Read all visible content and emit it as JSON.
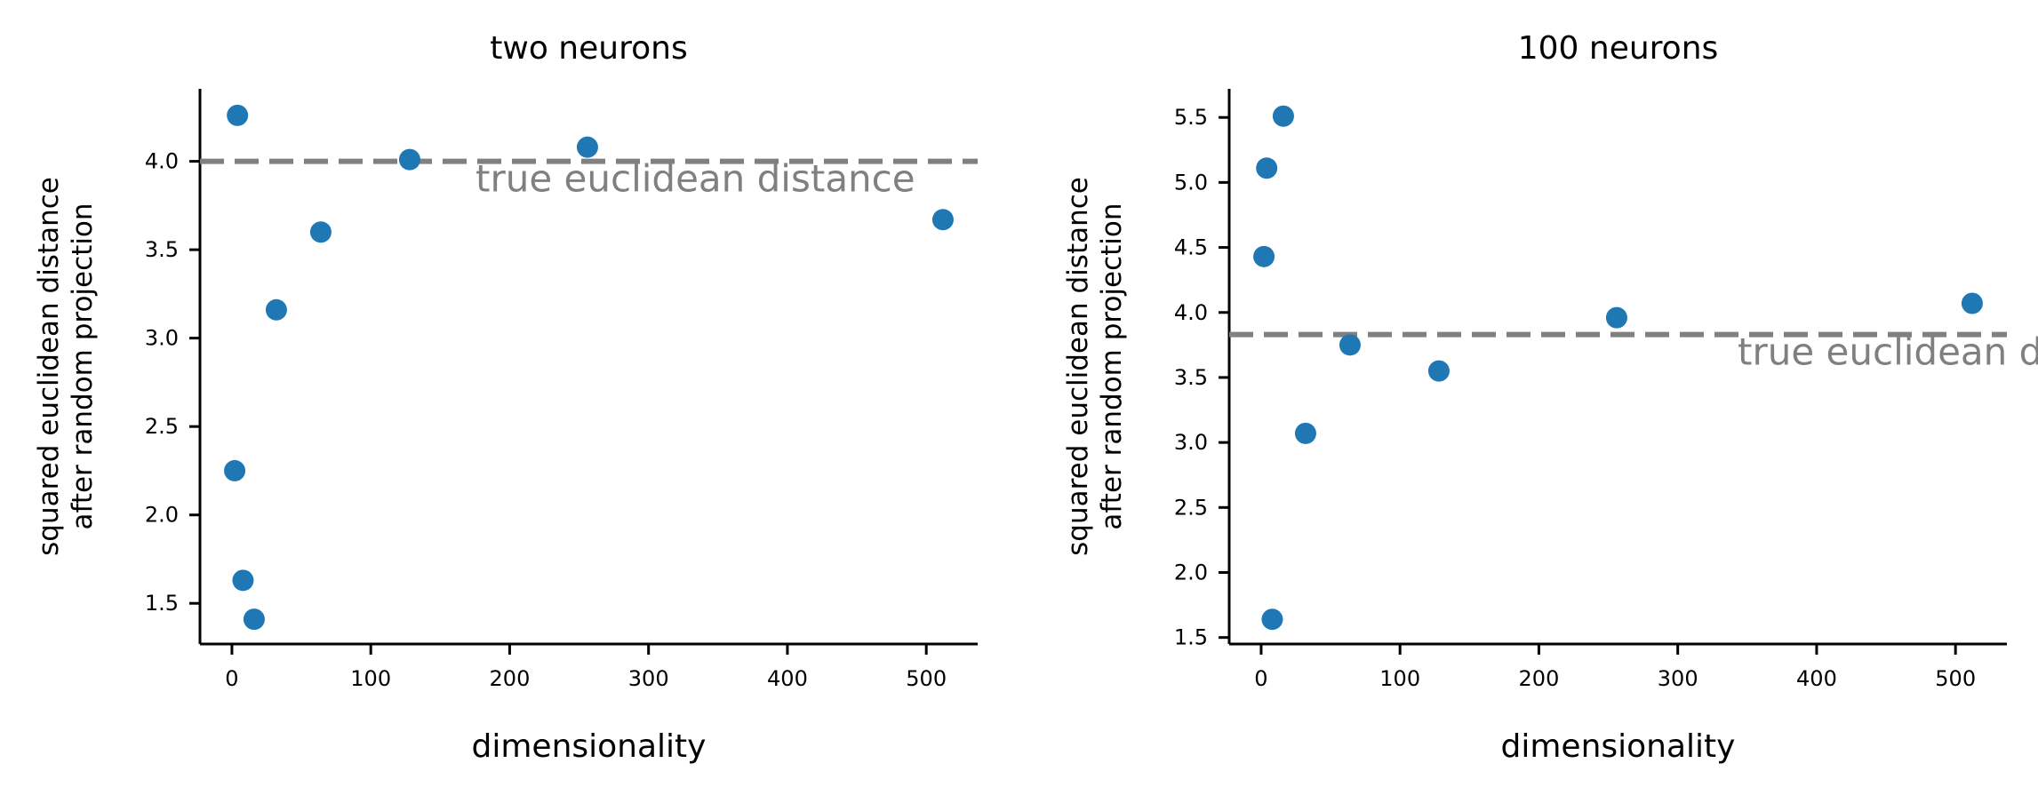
{
  "chart_data": [
    {
      "type": "scatter",
      "title": "two neurons",
      "xlabel": "dimensionality",
      "ylabel": [
        "squared euclidean distance",
        "after random projection"
      ],
      "x": [
        2,
        4,
        8,
        16,
        32,
        64,
        128,
        256,
        512
      ],
      "y": [
        2.25,
        4.26,
        1.63,
        1.41,
        3.16,
        3.6,
        4.01,
        4.08,
        3.67
      ],
      "xlim": [
        -23,
        537
      ],
      "ylim": [
        1.27,
        4.41
      ],
      "xticks": [
        0,
        100,
        200,
        300,
        400,
        500
      ],
      "yticks": [
        1.5,
        2.0,
        2.5,
        3.0,
        3.5,
        4.0
      ],
      "xtick_labels": [
        "0",
        "100",
        "200",
        "300",
        "400",
        "500"
      ],
      "ytick_labels": [
        "1.5",
        "2.0",
        "2.5",
        "3.0",
        "3.5",
        "4.0"
      ],
      "reference_line": {
        "y": 4.0,
        "label": "true euclidean distance",
        "style": "dashed",
        "color": "#808080"
      },
      "marker_color": "#1f77b4",
      "grid": false
    },
    {
      "type": "scatter",
      "title": "100 neurons",
      "xlabel": "dimensionality",
      "ylabel": [
        "squared euclidean distance",
        "after random projection"
      ],
      "x": [
        2,
        4,
        8,
        16,
        32,
        64,
        128,
        256,
        512
      ],
      "y": [
        4.43,
        5.11,
        1.64,
        5.51,
        3.07,
        3.75,
        3.55,
        3.96,
        4.07
      ],
      "xlim": [
        -23,
        537
      ],
      "ylim": [
        1.45,
        5.72
      ],
      "xticks": [
        0,
        100,
        200,
        300,
        400,
        500
      ],
      "yticks": [
        1.5,
        2.0,
        2.5,
        3.0,
        3.5,
        4.0,
        4.5,
        5.0,
        5.5
      ],
      "xtick_labels": [
        "0",
        "100",
        "200",
        "300",
        "400",
        "500"
      ],
      "ytick_labels": [
        "1.5",
        "2.0",
        "2.5",
        "3.0",
        "3.5",
        "4.0",
        "4.5",
        "5.0",
        "5.5"
      ],
      "reference_line": {
        "y": 3.83,
        "label": "true euclidean distance",
        "style": "dashed",
        "color": "#808080"
      },
      "marker_color": "#1f77b4",
      "grid": false
    }
  ]
}
